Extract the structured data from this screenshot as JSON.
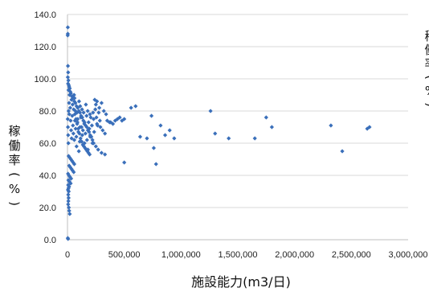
{
  "chart_data": {
    "type": "scatter",
    "xlabel": "施設能力(m3/日)",
    "ylabel_chars": [
      "稼",
      "働",
      "率",
      "(",
      "%",
      ")"
    ],
    "right_label_chars": [
      "稼",
      "働",
      "率",
      "(",
      "%",
      ")"
    ],
    "xlim": [
      0,
      3000000
    ],
    "ylim": [
      0,
      140
    ],
    "x_ticks": [
      {
        "value": 0,
        "label": "0"
      },
      {
        "value": 500000,
        "label": "500,000"
      },
      {
        "value": 1000000,
        "label": "1,000,000"
      },
      {
        "value": 1500000,
        "label": "1,500,000"
      },
      {
        "value": 2000000,
        "label": "2,000,000"
      },
      {
        "value": 2500000,
        "label": "2,500,000"
      },
      {
        "value": 3000000,
        "label": "3,000,000"
      }
    ],
    "y_ticks": [
      {
        "value": 0,
        "label": "0.0"
      },
      {
        "value": 20,
        "label": "20.0"
      },
      {
        "value": 40,
        "label": "40.0"
      },
      {
        "value": 60,
        "label": "60.0"
      },
      {
        "value": 80,
        "label": "80.0"
      },
      {
        "value": 100,
        "label": "100.0"
      },
      {
        "value": 120,
        "label": "120.0"
      },
      {
        "value": 140,
        "label": "140.0"
      }
    ],
    "grid": "horizontal",
    "marker": "diamond",
    "marker_color": "#3a6fba",
    "points": [
      [
        3000,
        132
      ],
      [
        3000,
        128
      ],
      [
        2000,
        127
      ],
      [
        4000,
        108
      ],
      [
        6000,
        104
      ],
      [
        3000,
        101
      ],
      [
        8000,
        99
      ],
      [
        5000,
        97
      ],
      [
        12000,
        96
      ],
      [
        15000,
        95
      ],
      [
        20000,
        94
      ],
      [
        9000,
        93
      ],
      [
        25000,
        92
      ],
      [
        30000,
        91
      ],
      [
        18000,
        90
      ],
      [
        40000,
        89
      ],
      [
        50000,
        88
      ],
      [
        35000,
        87
      ],
      [
        60000,
        86
      ],
      [
        70000,
        85
      ],
      [
        45000,
        84
      ],
      [
        80000,
        83
      ],
      [
        90000,
        82
      ],
      [
        55000,
        81
      ],
      [
        100000,
        80
      ],
      [
        110000,
        79
      ],
      [
        65000,
        78
      ],
      [
        120000,
        77
      ],
      [
        130000,
        76
      ],
      [
        75000,
        75
      ],
      [
        140000,
        74
      ],
      [
        150000,
        73
      ],
      [
        85000,
        72
      ],
      [
        160000,
        71
      ],
      [
        170000,
        70
      ],
      [
        95000,
        69
      ],
      [
        180000,
        68
      ],
      [
        190000,
        67
      ],
      [
        105000,
        66
      ],
      [
        200000,
        65
      ],
      [
        210000,
        64
      ],
      [
        115000,
        63
      ],
      [
        220000,
        62
      ],
      [
        125000,
        61
      ],
      [
        230000,
        60
      ],
      [
        135000,
        59
      ],
      [
        145000,
        58
      ],
      [
        155000,
        57
      ],
      [
        165000,
        56
      ],
      [
        175000,
        55
      ],
      [
        185000,
        54
      ],
      [
        195000,
        53
      ],
      [
        10000,
        52
      ],
      [
        20000,
        51
      ],
      [
        30000,
        50
      ],
      [
        40000,
        49
      ],
      [
        50000,
        48
      ],
      [
        60000,
        47
      ],
      [
        15000,
        46
      ],
      [
        25000,
        45
      ],
      [
        35000,
        44
      ],
      [
        45000,
        43
      ],
      [
        55000,
        42
      ],
      [
        5000,
        41
      ],
      [
        12000,
        40
      ],
      [
        22000,
        39
      ],
      [
        32000,
        38
      ],
      [
        8000,
        37
      ],
      [
        18000,
        36
      ],
      [
        28000,
        35
      ],
      [
        6000,
        34
      ],
      [
        14000,
        33
      ],
      [
        9000,
        32
      ],
      [
        4000,
        31
      ],
      [
        11000,
        30
      ],
      [
        7000,
        28
      ],
      [
        10000,
        26
      ],
      [
        8000,
        24
      ],
      [
        6000,
        22
      ],
      [
        12000,
        20
      ],
      [
        15000,
        18
      ],
      [
        20000,
        16
      ],
      [
        3000,
        1
      ],
      [
        5000,
        0.5
      ],
      [
        240000,
        87
      ],
      [
        260000,
        86
      ],
      [
        250000,
        84
      ],
      [
        280000,
        82
      ],
      [
        300000,
        85
      ],
      [
        320000,
        80
      ],
      [
        340000,
        78
      ],
      [
        230000,
        75
      ],
      [
        260000,
        72
      ],
      [
        290000,
        70
      ],
      [
        310000,
        68
      ],
      [
        330000,
        66
      ],
      [
        350000,
        74
      ],
      [
        370000,
        73
      ],
      [
        250000,
        58
      ],
      [
        270000,
        56
      ],
      [
        300000,
        54
      ],
      [
        330000,
        53
      ],
      [
        380000,
        73
      ],
      [
        400000,
        72
      ],
      [
        420000,
        74
      ],
      [
        440000,
        75
      ],
      [
        460000,
        76
      ],
      [
        480000,
        74
      ],
      [
        500000,
        75
      ],
      [
        200000,
        64
      ],
      [
        220000,
        60
      ],
      [
        180000,
        56
      ],
      [
        150000,
        60
      ],
      [
        130000,
        65
      ],
      [
        110000,
        70
      ],
      [
        90000,
        75
      ],
      [
        70000,
        80
      ],
      [
        60000,
        62
      ],
      [
        80000,
        58
      ],
      [
        100000,
        55
      ],
      [
        500000,
        48
      ],
      [
        560000,
        82
      ],
      [
        600000,
        83
      ],
      [
        640000,
        64
      ],
      [
        700000,
        63
      ],
      [
        740000,
        77
      ],
      [
        760000,
        57
      ],
      [
        780000,
        47
      ],
      [
        820000,
        71
      ],
      [
        860000,
        65
      ],
      [
        900000,
        68
      ],
      [
        940000,
        63
      ],
      [
        1260000,
        80
      ],
      [
        1300000,
        66
      ],
      [
        1420000,
        63
      ],
      [
        1650000,
        63
      ],
      [
        1750000,
        76
      ],
      [
        1800000,
        70
      ],
      [
        2320000,
        71
      ],
      [
        2420000,
        55
      ],
      [
        2640000,
        69
      ],
      [
        2660000,
        70
      ],
      [
        2000,
        75
      ],
      [
        4000,
        70
      ],
      [
        6000,
        65
      ],
      [
        8000,
        60
      ],
      [
        10000,
        80
      ],
      [
        14000,
        85
      ],
      [
        16000,
        78
      ],
      [
        24000,
        82
      ],
      [
        28000,
        74
      ],
      [
        32000,
        68
      ],
      [
        36000,
        63
      ],
      [
        42000,
        77
      ],
      [
        48000,
        71
      ],
      [
        52000,
        66
      ],
      [
        58000,
        90
      ],
      [
        62000,
        88
      ],
      [
        66000,
        74
      ],
      [
        72000,
        69
      ],
      [
        78000,
        64
      ],
      [
        84000,
        79
      ],
      [
        88000,
        73
      ],
      [
        96000,
        67
      ],
      [
        102000,
        86
      ],
      [
        108000,
        61
      ],
      [
        112000,
        83
      ],
      [
        118000,
        76
      ],
      [
        124000,
        70
      ],
      [
        128000,
        81
      ],
      [
        136000,
        68
      ],
      [
        142000,
        79
      ],
      [
        148000,
        72
      ],
      [
        158000,
        66
      ],
      [
        162000,
        84
      ],
      [
        168000,
        77
      ],
      [
        172000,
        62
      ],
      [
        178000,
        80
      ],
      [
        186000,
        73
      ],
      [
        192000,
        69
      ],
      [
        198000,
        78
      ],
      [
        205000,
        76
      ],
      [
        215000,
        71
      ],
      [
        225000,
        79
      ],
      [
        235000,
        67
      ],
      [
        245000,
        81
      ],
      [
        255000,
        76
      ],
      [
        265000,
        71
      ],
      [
        275000,
        79
      ],
      [
        285000,
        74
      ]
    ]
  }
}
